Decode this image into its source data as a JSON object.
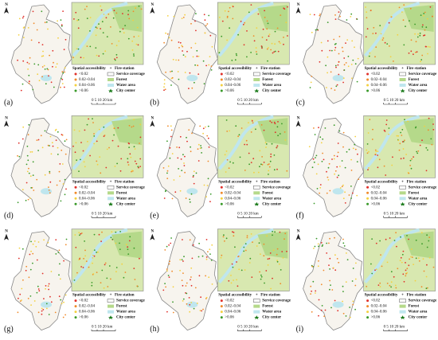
{
  "panels": [
    {
      "label": "(a)"
    },
    {
      "label": "(b)"
    },
    {
      "label": "(c)"
    },
    {
      "label": "(d)"
    },
    {
      "label": "(e)"
    },
    {
      "label": "(f)"
    },
    {
      "label": "(g)"
    },
    {
      "label": "(h)"
    },
    {
      "label": "(i)"
    }
  ],
  "north": "N",
  "legend": {
    "title": "Spatial accessibility",
    "classes": [
      "<0.02",
      "0.02–0.04",
      "0.04–0.06",
      ">0.06"
    ],
    "fire_station": "Fire station",
    "service_coverage": "Service coverage",
    "forest": "Forest",
    "water_area": "Water area",
    "city_center": "City center"
  },
  "scale_bar": "0 5 10 20 km"
}
